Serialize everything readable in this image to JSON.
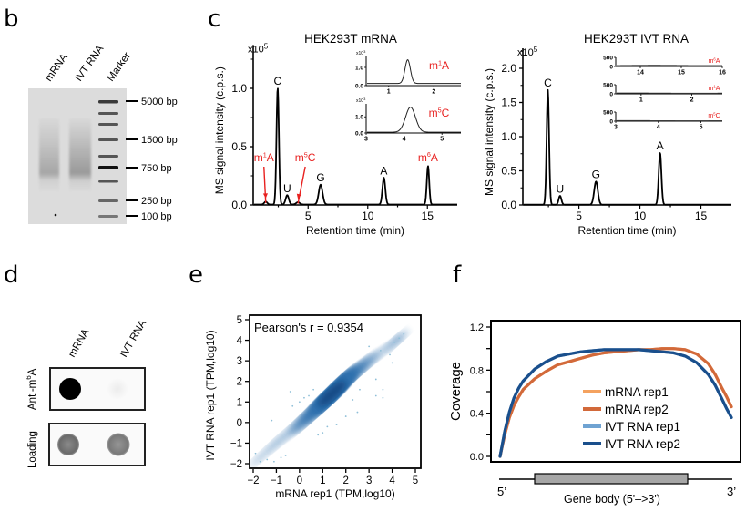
{
  "panels": {
    "b": {
      "letter": "b",
      "lane_labels": [
        "mRNA",
        "IVT RNA",
        "Marker"
      ],
      "marker_labels": [
        "5000 bp",
        "1500 bp",
        "750 bp",
        "250 bp",
        "100 bp"
      ]
    },
    "c": {
      "letter": "c"
    },
    "d": {
      "letter": "d",
      "column_labels": [
        "mRNA",
        "IVT RNA"
      ],
      "row_labels": [
        "Anti-m6A",
        "Loading"
      ],
      "row_label_parts": {
        "anti_prefix": "Anti-m",
        "anti_sup": "6",
        "anti_suffix": "A"
      },
      "signal": {
        "anti_m6a": {
          "mRNA": 1.0,
          "IVT RNA": 0.04
        },
        "loading": {
          "mRNA": 0.7,
          "IVT RNA": 0.6
        }
      }
    },
    "e": {
      "letter": "e"
    },
    "f": {
      "letter": "f"
    }
  },
  "chart_data": [
    {
      "id": "c-left",
      "type": "line",
      "title": "HEK293T mRNA",
      "xlabel": "Retention time (min)",
      "ylabel": "MS signal intensity (c.p.s.)",
      "y_multiplier": "x10",
      "y_multiplier_exp": "5",
      "xlim": [
        0.4,
        17.5
      ],
      "ylim": [
        0,
        1.2
      ],
      "xticks": [
        5,
        10,
        15
      ],
      "yticks": [
        0.0,
        0.5,
        1.0
      ],
      "ytick_labels": [
        "0.0",
        "0.5",
        "1.0"
      ],
      "peaks": [
        {
          "label": "m1A",
          "base": "m",
          "sup": "1",
          "tail": "A",
          "x": 1.45,
          "y": 0.025,
          "w": 0.12,
          "modified": true
        },
        {
          "label": "C",
          "x": 2.45,
          "y": 1.0,
          "w": 0.1,
          "modified": false
        },
        {
          "label": "U",
          "x": 3.25,
          "y": 0.08,
          "w": 0.13,
          "modified": false
        },
        {
          "label": "m5C",
          "base": "m",
          "sup": "5",
          "tail": "C",
          "x": 4.15,
          "y": 0.02,
          "w": 0.15,
          "modified": true
        },
        {
          "label": "G",
          "x": 6.05,
          "y": 0.17,
          "w": 0.16,
          "modified": false
        },
        {
          "label": "A",
          "x": 11.35,
          "y": 0.23,
          "w": 0.12,
          "modified": false
        },
        {
          "label": "m6A",
          "base": "m",
          "sup": "6",
          "tail": "A",
          "x": 15.05,
          "y": 0.33,
          "w": 0.1,
          "modified": true
        }
      ],
      "insets": [
        {
          "label": "m1A",
          "base": "m",
          "sup": "1",
          "tail": "A",
          "multiplier": "x10",
          "multiplier_exp": "3",
          "xlim": [
            0.5,
            2.6
          ],
          "xticks": [
            1,
            2
          ],
          "ylim": [
            0,
            1.6
          ],
          "yticks": [
            "0.0",
            "1.0"
          ],
          "peak_x": 1.42,
          "peak_y": 1.3,
          "peak_w": 0.06,
          "baseline": 0.12
        },
        {
          "label": "m5C",
          "base": "m",
          "sup": "5",
          "tail": "C",
          "multiplier": "x10",
          "multiplier_exp": "3",
          "xlim": [
            3,
            5.5
          ],
          "xticks": [
            3,
            4,
            5
          ],
          "ylim": [
            0,
            1.8
          ],
          "yticks": [
            "0.0",
            "1.0"
          ],
          "peak_x": 4.17,
          "peak_y": 1.55,
          "peak_w": 0.13,
          "baseline": 0.05
        }
      ]
    },
    {
      "id": "c-right",
      "type": "line",
      "title": "HEK293T IVT RNA",
      "xlabel": "Retention time (min)",
      "ylabel": "MS signal intensity (c.p.s.)",
      "y_multiplier": "x10",
      "y_multiplier_exp": "5",
      "xlim": [
        0.4,
        17.5
      ],
      "ylim": [
        0,
        2.0
      ],
      "xticks": [
        5,
        10,
        15
      ],
      "yticks": [
        0.0,
        0.5,
        1.0,
        1.5,
        2.0
      ],
      "ytick_labels": [
        "0.0",
        "0.5",
        "1.0",
        "1.5",
        "2.0"
      ],
      "peaks": [
        {
          "label": "C",
          "x": 2.45,
          "y": 1.68,
          "w": 0.1
        },
        {
          "label": "U",
          "x": 3.45,
          "y": 0.13,
          "w": 0.11
        },
        {
          "label": "G",
          "x": 6.4,
          "y": 0.34,
          "w": 0.15
        },
        {
          "label": "A",
          "x": 11.65,
          "y": 0.76,
          "w": 0.11
        }
      ],
      "insets": [
        {
          "label": "m6A",
          "base": "m",
          "sup": "6",
          "tail": "A",
          "xlim": [
            13.4,
            16
          ],
          "xticks": [
            14,
            15,
            16
          ],
          "ylim": [
            0,
            500
          ],
          "yticks": [
            "0",
            "500"
          ],
          "baseline": 60
        },
        {
          "label": "m1A",
          "base": "m",
          "sup": "1",
          "tail": "A",
          "xlim": [
            0.5,
            2.6
          ],
          "xticks": [
            1,
            2
          ],
          "ylim": [
            0,
            500
          ],
          "yticks": [
            "0",
            "500"
          ],
          "baseline": 40
        },
        {
          "label": "m5C",
          "base": "m",
          "sup": "5",
          "tail": "C",
          "xlim": [
            3,
            5.5
          ],
          "xticks": [
            3,
            4,
            5
          ],
          "ylim": [
            0,
            500
          ],
          "yticks": [
            "0",
            "500"
          ],
          "baseline": 30
        }
      ]
    },
    {
      "id": "e",
      "type": "scatter",
      "title": "",
      "annotation": "Pearson's r  = 0.9354",
      "pearson_r": 0.9354,
      "xlabel": "mRNA rep1 (TPM,log10)",
      "ylabel": "IVT RNA rep1 (TPM,log10)",
      "xlim": [
        -2.1,
        5.2
      ],
      "ylim": [
        -2.2,
        5.2
      ],
      "xticks": [
        -2,
        -1,
        0,
        1,
        2,
        3,
        4,
        5
      ],
      "yticks": [
        -2,
        -1,
        0,
        1,
        2,
        3,
        4,
        5
      ],
      "xtick_labels": [
        "−2",
        "−1",
        "0",
        "1",
        "2",
        "3",
        "4",
        "5"
      ],
      "ytick_labels": [
        "−2",
        "−1",
        "0",
        "1",
        "2",
        "3",
        "4",
        "5"
      ],
      "density_ridge": [
        [
          -2,
          -2
        ],
        [
          -1,
          -1
        ],
        [
          0,
          -0.1
        ],
        [
          1,
          0.95
        ],
        [
          1.5,
          1.5
        ],
        [
          2,
          2.1
        ],
        [
          3,
          3.0
        ],
        [
          4,
          3.8
        ],
        [
          4.5,
          4.3
        ]
      ],
      "density_peak": [
        1.4,
        1.4
      ],
      "outliers": [
        [
          -1.9,
          -1.5
        ],
        [
          -1.7,
          -1.9
        ],
        [
          -1.4,
          -1.8
        ],
        [
          -1.1,
          -1.9
        ],
        [
          -0.6,
          -1.6
        ],
        [
          -0.4,
          1.5
        ],
        [
          -0.3,
          0.8
        ],
        [
          0,
          1.0
        ],
        [
          0.4,
          1.3
        ],
        [
          0.6,
          1.6
        ],
        [
          1.2,
          -0.2
        ],
        [
          1.6,
          -0.1
        ],
        [
          2.0,
          0.3
        ],
        [
          2.3,
          1.1
        ],
        [
          2.5,
          0.5
        ],
        [
          2.6,
          1.6
        ],
        [
          3.0,
          3.7
        ],
        [
          3.3,
          2.1
        ],
        [
          3.3,
          1.3
        ],
        [
          3.6,
          1.6
        ],
        [
          3.6,
          1.2
        ],
        [
          3.5,
          3.5
        ],
        [
          3.9,
          3.3
        ],
        [
          4.0,
          2.9
        ],
        [
          4.1,
          3.9
        ],
        [
          4.3,
          4.1
        ],
        [
          4.5,
          4.3
        ],
        [
          -0.8,
          -1.7
        ],
        [
          0.8,
          -0.6
        ],
        [
          1.0,
          -0.5
        ],
        [
          -1.2,
          0.1
        ],
        [
          0.2,
          1.2
        ]
      ]
    },
    {
      "id": "f",
      "type": "line",
      "xlabel": "Gene body (5'–>3')",
      "ylabel": "Coverage",
      "x_end_labels": [
        "5’",
        "3’"
      ],
      "ylim": [
        0,
        1.25
      ],
      "yticks": [
        0.0,
        0.4,
        0.8,
        1.2
      ],
      "ytick_labels": [
        "0.0",
        "0.4",
        "0.8",
        "1.2"
      ],
      "xlim": [
        0,
        100
      ],
      "legend": "center",
      "series": [
        {
          "name": "mRNA rep1",
          "color": "#f4a25f",
          "x": [
            0,
            2,
            4,
            6,
            8,
            10,
            15,
            20,
            25,
            30,
            35,
            40,
            45,
            50,
            55,
            60,
            65,
            70,
            75,
            80,
            85,
            90,
            93,
            96,
            98,
            100
          ],
          "y": [
            0.0,
            0.2,
            0.36,
            0.47,
            0.55,
            0.62,
            0.72,
            0.79,
            0.85,
            0.88,
            0.91,
            0.94,
            0.96,
            0.97,
            0.98,
            0.99,
            0.99,
            1.0,
            1.0,
            0.99,
            0.95,
            0.86,
            0.76,
            0.63,
            0.55,
            0.46
          ]
        },
        {
          "name": "mRNA rep2",
          "color": "#d2693a",
          "x": [
            0,
            2,
            4,
            6,
            8,
            10,
            15,
            20,
            25,
            30,
            35,
            40,
            45,
            50,
            55,
            60,
            65,
            70,
            75,
            80,
            85,
            90,
            93,
            96,
            98,
            100
          ],
          "y": [
            0.0,
            0.2,
            0.36,
            0.47,
            0.55,
            0.62,
            0.72,
            0.79,
            0.85,
            0.88,
            0.91,
            0.94,
            0.96,
            0.97,
            0.98,
            0.99,
            0.99,
            1.0,
            1.0,
            0.99,
            0.95,
            0.86,
            0.76,
            0.63,
            0.55,
            0.46
          ]
        },
        {
          "name": "IVT RNA rep1",
          "color": "#6fa3d2",
          "x": [
            0,
            2,
            4,
            6,
            8,
            10,
            15,
            20,
            25,
            30,
            35,
            40,
            45,
            50,
            55,
            60,
            65,
            70,
            75,
            80,
            85,
            90,
            93,
            96,
            98,
            100
          ],
          "y": [
            0.0,
            0.23,
            0.41,
            0.54,
            0.63,
            0.7,
            0.81,
            0.88,
            0.93,
            0.95,
            0.97,
            0.98,
            0.99,
            0.99,
            0.99,
            0.99,
            0.98,
            0.97,
            0.96,
            0.93,
            0.87,
            0.76,
            0.66,
            0.53,
            0.44,
            0.36
          ]
        },
        {
          "name": "IVT RNA rep2",
          "color": "#1a4f8c",
          "x": [
            0,
            2,
            4,
            6,
            8,
            10,
            15,
            20,
            25,
            30,
            35,
            40,
            45,
            50,
            55,
            60,
            65,
            70,
            75,
            80,
            85,
            90,
            93,
            96,
            98,
            100
          ],
          "y": [
            0.0,
            0.23,
            0.41,
            0.54,
            0.63,
            0.7,
            0.81,
            0.88,
            0.93,
            0.95,
            0.97,
            0.98,
            0.99,
            0.99,
            0.99,
            0.99,
            0.98,
            0.97,
            0.96,
            0.93,
            0.87,
            0.76,
            0.66,
            0.53,
            0.44,
            0.36
          ]
        }
      ]
    }
  ]
}
